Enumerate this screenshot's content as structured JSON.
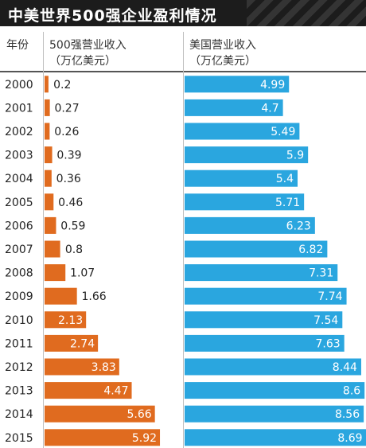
{
  "title": "中美世界500强企业盈利情况",
  "headers": {
    "year": "年份",
    "cn_line1": "500强营业收入",
    "cn_line2": "（万亿美元）",
    "us_line1": "美国营业收入",
    "us_line2": "（万亿美元）"
  },
  "colors": {
    "china": "#e06b1f",
    "us": "#2aa6df",
    "title_bg": "#1c1c1c"
  },
  "chart_data": {
    "type": "bar",
    "categories": [
      "2000",
      "2001",
      "2002",
      "2003",
      "2004",
      "2005",
      "2006",
      "2007",
      "2008",
      "2009",
      "2010",
      "2011",
      "2012",
      "2013",
      "2014",
      "2015"
    ],
    "series": [
      {
        "name": "500强营业收入",
        "values": [
          0.2,
          0.27,
          0.26,
          0.39,
          0.36,
          0.46,
          0.59,
          0.8,
          1.07,
          1.66,
          2.13,
          2.74,
          3.83,
          4.47,
          5.66,
          5.92
        ]
      },
      {
        "name": "美国营业收入",
        "values": [
          4.99,
          4.7,
          5.49,
          5.9,
          5.4,
          5.71,
          6.23,
          6.82,
          7.31,
          7.74,
          7.54,
          7.63,
          8.44,
          8.6,
          8.56,
          8.69
        ]
      }
    ],
    "title": "中美世界500强企业盈利情况",
    "xlabel": "年份",
    "ylabel": "（万亿美元）",
    "grid": false
  }
}
